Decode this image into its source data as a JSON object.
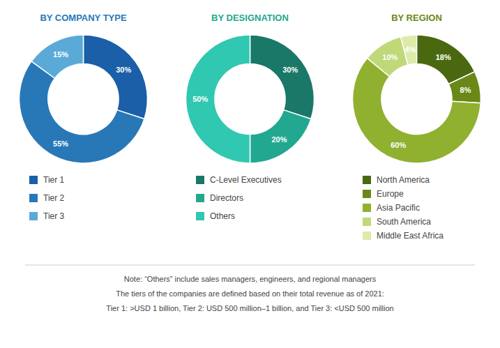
{
  "chart_data": [
    {
      "type": "pie",
      "title": "BY COMPANY TYPE",
      "categories": [
        "Tier 1",
        "Tier 2",
        "Tier 3"
      ],
      "values": [
        30,
        55,
        15
      ],
      "value_labels": [
        "30%",
        "55%",
        "15%"
      ],
      "colors": [
        "#1a5fa8",
        "#2878b8",
        "#5aaad8"
      ],
      "data_labels": true
    },
    {
      "type": "pie",
      "title": "BY DESIGNATION",
      "categories": [
        "C-Level Executives",
        "Directors",
        "Others"
      ],
      "values": [
        30,
        20,
        50
      ],
      "value_labels": [
        "30%",
        "20%",
        "50%"
      ],
      "colors": [
        "#1a7868",
        "#22a890",
        "#30c8b0"
      ],
      "data_labels": true
    },
    {
      "type": "pie",
      "title": "BY REGION",
      "categories": [
        "North America",
        "Europe",
        "Asia Pacific",
        "South America",
        "Middle East Africa"
      ],
      "values": [
        18,
        8,
        60,
        10,
        4
      ],
      "value_labels": [
        "18%",
        "8%",
        "60%",
        "10%",
        "4%"
      ],
      "colors": [
        "#4a6810",
        "#6a8818",
        "#90b030",
        "#c0d878",
        "#ddeaaa"
      ],
      "data_labels": true
    }
  ],
  "annotations": [
    "Note: “Others” include sales managers, engineers, and regional managers",
    "The tiers of the companies are defined based on their total revenue as of 2021:",
    "Tier 1: >USD 1 billion, Tier 2: USD 500 million–1 billion, and Tier 3: <USD 500 million"
  ]
}
